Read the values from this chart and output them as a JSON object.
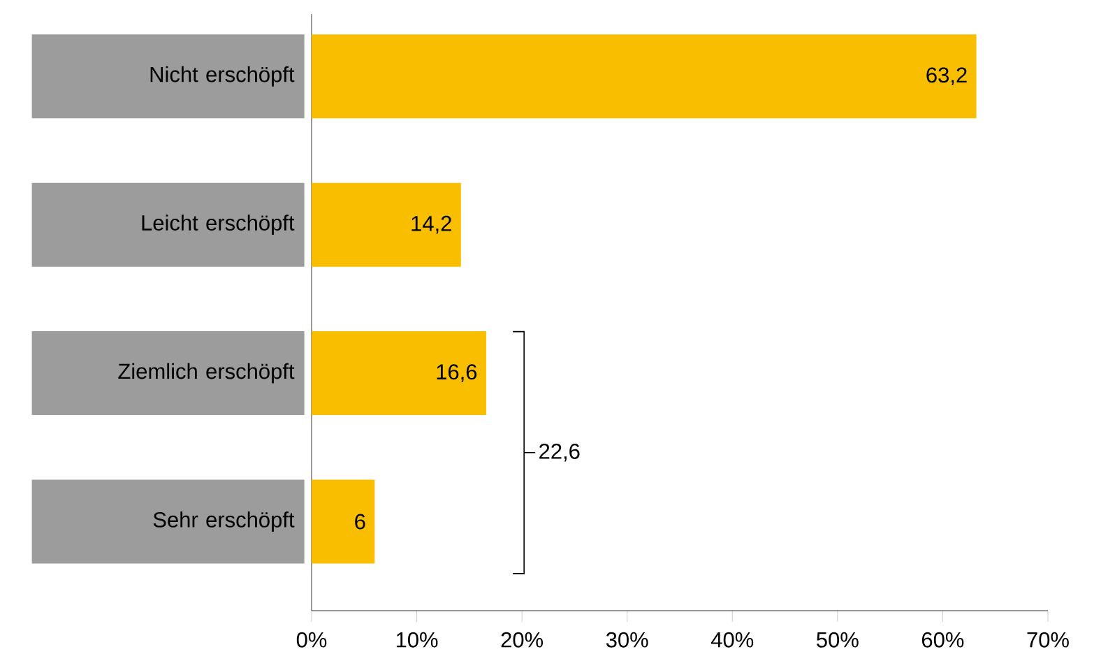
{
  "chart_data": {
    "type": "bar",
    "orientation": "horizontal",
    "categories": [
      "Nicht erschöpft",
      "Leicht erschöpft",
      "Ziemlich erschöpft",
      "Sehr erschöpft"
    ],
    "values": [
      63.2,
      14.2,
      16.6,
      6
    ],
    "value_labels": [
      "63,2",
      "14,2",
      "16,6",
      "6"
    ],
    "color": "#f9be00",
    "xlim": [
      0,
      70
    ],
    "xticks": [
      {
        "value": 0,
        "label": "0%"
      },
      {
        "value": 10,
        "label": "10%"
      },
      {
        "value": 20,
        "label": "20%"
      },
      {
        "value": 30,
        "label": "30%"
      },
      {
        "value": 40,
        "label": "40%"
      },
      {
        "value": 50,
        "label": "50%"
      },
      {
        "value": 60,
        "label": "60%"
      },
      {
        "value": 70,
        "label": "70%"
      }
    ],
    "annotations": [
      "22,6"
    ],
    "grid": false
  }
}
